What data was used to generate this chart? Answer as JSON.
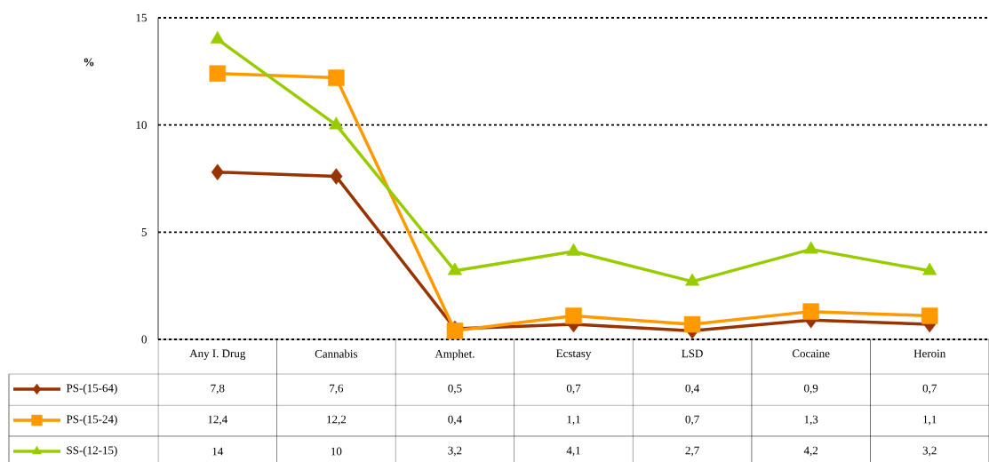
{
  "chart_data": {
    "type": "line",
    "ylabel": "%",
    "categories": [
      "Any I. Drug",
      "Cannabis",
      "Amphet.",
      "Ecstasy",
      "LSD",
      "Cocaine",
      "Heroin"
    ],
    "series": [
      {
        "name": "PS-(15-64)",
        "color": "#993300",
        "marker": "diamond",
        "values": [
          7.8,
          7.6,
          0.5,
          0.7,
          0.4,
          0.9,
          0.7
        ],
        "value_labels": [
          "7,8",
          "7,6",
          "0,5",
          "0,7",
          "0,4",
          "0,9",
          "0,7"
        ]
      },
      {
        "name": "PS-(15-24)",
        "color": "#ff9900",
        "marker": "square",
        "values": [
          12.4,
          12.2,
          0.4,
          1.1,
          0.7,
          1.3,
          1.1
        ],
        "value_labels": [
          "12,4",
          "12,2",
          "0,4",
          "1,1",
          "0,7",
          "1,3",
          "1,1"
        ]
      },
      {
        "name": "SS-(12-15)",
        "color": "#99cc00",
        "marker": "triangle",
        "values": [
          14,
          10,
          3.2,
          4.1,
          2.7,
          4.2,
          3.2
        ],
        "value_labels": [
          "14",
          "10",
          "3,2",
          "4,1",
          "2,7",
          "4,2",
          "3,2"
        ]
      }
    ],
    "ylim": [
      0,
      15
    ],
    "yticks": [
      0,
      5,
      10,
      15
    ],
    "grid": "y",
    "legend": "bottom left",
    "line_style": "solid"
  }
}
